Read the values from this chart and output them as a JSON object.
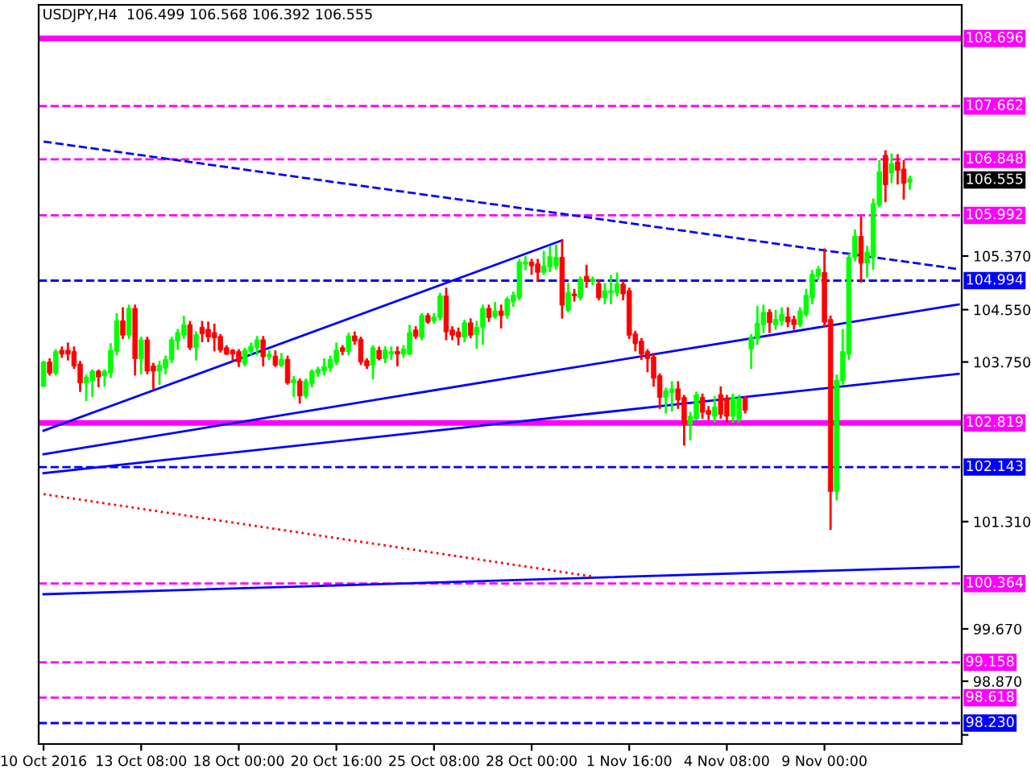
{
  "chart_data": {
    "type": "candlestick",
    "title": "USDJPY,H4  106.499 106.568 106.392 106.555",
    "categories": [
      "10 Oct 2016",
      null,
      null,
      null,
      null,
      null,
      null,
      null,
      null,
      null,
      null,
      null,
      null,
      null,
      null,
      null,
      "13 Oct 08:00",
      null,
      null,
      null,
      null,
      null,
      null,
      null,
      null,
      null,
      null,
      null,
      null,
      null,
      null,
      null,
      "18 Oct 00:00",
      null,
      null,
      null,
      null,
      null,
      null,
      null,
      null,
      null,
      null,
      null,
      null,
      null,
      null,
      null,
      "20 Oct 16:00",
      null,
      null,
      null,
      null,
      null,
      null,
      null,
      null,
      null,
      null,
      null,
      null,
      null,
      null,
      null,
      "25 Oct 08:00",
      null,
      null,
      null,
      null,
      null,
      null,
      null,
      null,
      null,
      null,
      null,
      null,
      null,
      null,
      null,
      "28 Oct 00:00",
      null,
      null,
      null,
      null,
      null,
      null,
      null,
      null,
      null,
      null,
      null,
      null,
      null,
      null,
      null,
      "1 Nov 16:00",
      null,
      null,
      null,
      null,
      null,
      null,
      null,
      null,
      null,
      null,
      null,
      null,
      null,
      null,
      null,
      "4 Nov 08:00",
      null,
      null,
      null,
      null,
      null,
      null,
      null,
      null,
      null,
      null,
      null,
      null,
      null,
      null,
      null,
      "9 Nov 00:00",
      null,
      null,
      null,
      null,
      null,
      null,
      null,
      null,
      null,
      null,
      null,
      null,
      null,
      null,
      null,
      null,
      null,
      null,
      null,
      null,
      null,
      null
    ],
    "ohlc": [
      [
        103.38,
        103.75,
        103.38,
        103.75
      ],
      [
        103.75,
        103.79,
        103.56,
        103.58
      ],
      [
        103.58,
        103.93,
        103.56,
        103.91
      ],
      [
        103.93,
        103.97,
        103.83,
        103.87
      ],
      [
        103.93,
        104.03,
        103.79,
        103.87
      ],
      [
        103.91,
        103.97,
        103.66,
        103.69
      ],
      [
        103.72,
        103.75,
        103.31,
        103.43
      ],
      [
        103.43,
        103.54,
        103.17,
        103.52
      ],
      [
        103.46,
        103.62,
        103.23,
        103.61
      ],
      [
        103.61,
        103.62,
        103.38,
        103.52
      ],
      [
        103.54,
        103.62,
        103.39,
        103.61
      ],
      [
        103.58,
        104.02,
        103.52,
        103.93
      ],
      [
        103.91,
        104.48,
        103.87,
        104.38
      ],
      [
        104.38,
        104.57,
        104.12,
        104.16
      ],
      [
        104.16,
        104.61,
        104.12,
        104.57
      ],
      [
        104.57,
        104.61,
        103.56,
        103.8
      ],
      [
        103.8,
        104.12,
        103.58,
        104.09
      ],
      [
        104.09,
        104.12,
        103.58,
        103.61
      ],
      [
        103.69,
        103.72,
        103.35,
        103.61
      ],
      [
        103.61,
        103.75,
        103.42,
        103.7
      ],
      [
        103.66,
        103.83,
        103.58,
        103.79
      ],
      [
        103.79,
        104.12,
        103.75,
        104.09
      ],
      [
        104.07,
        104.24,
        103.95,
        104.2
      ],
      [
        104.16,
        104.44,
        104.12,
        104.32
      ],
      [
        104.32,
        104.36,
        103.95,
        103.97
      ],
      [
        103.97,
        104.2,
        103.79,
        104.17
      ],
      [
        104.28,
        104.36,
        104.07,
        104.18
      ],
      [
        104.25,
        104.35,
        104.07,
        104.13
      ],
      [
        104.2,
        104.32,
        103.93,
        104.12
      ],
      [
        104.14,
        104.16,
        103.91,
        103.93
      ],
      [
        103.97,
        103.99,
        103.87,
        103.87
      ],
      [
        103.93,
        103.93,
        103.79,
        103.87
      ],
      [
        103.91,
        103.93,
        103.69,
        103.75
      ],
      [
        103.72,
        103.95,
        103.7,
        103.93
      ],
      [
        103.91,
        104.03,
        103.87,
        103.99
      ],
      [
        103.97,
        104.13,
        103.87,
        104.09
      ],
      [
        104.09,
        104.13,
        103.7,
        103.83
      ],
      [
        103.83,
        103.91,
        103.8,
        103.87
      ],
      [
        103.84,
        103.91,
        103.69,
        103.7
      ],
      [
        103.7,
        103.87,
        103.69,
        103.79
      ],
      [
        103.79,
        103.83,
        103.42,
        103.43
      ],
      [
        103.43,
        103.52,
        103.23,
        103.48
      ],
      [
        103.46,
        103.48,
        103.13,
        103.23
      ],
      [
        103.23,
        103.48,
        103.21,
        103.46
      ],
      [
        103.42,
        103.62,
        103.38,
        103.61
      ],
      [
        103.58,
        103.66,
        103.54,
        103.64
      ],
      [
        103.61,
        103.79,
        103.56,
        103.68
      ],
      [
        103.66,
        103.83,
        103.62,
        103.79
      ],
      [
        103.75,
        104.03,
        103.72,
        103.93
      ],
      [
        103.97,
        103.99,
        103.87,
        103.91
      ],
      [
        103.91,
        104.18,
        103.87,
        104.15
      ],
      [
        104.15,
        104.2,
        104.03,
        104.07
      ],
      [
        104.1,
        104.12,
        103.72,
        103.75
      ],
      [
        103.77,
        103.79,
        103.66,
        103.69
      ],
      [
        103.7,
        103.99,
        103.5,
        103.97
      ],
      [
        103.93,
        103.97,
        103.79,
        103.8
      ],
      [
        103.8,
        103.97,
        103.75,
        103.93
      ],
      [
        103.87,
        103.97,
        103.8,
        103.91
      ],
      [
        103.91,
        103.97,
        103.7,
        103.87
      ],
      [
        103.87,
        103.99,
        103.83,
        103.95
      ],
      [
        103.87,
        104.3,
        103.87,
        104.2
      ],
      [
        104.24,
        104.28,
        104.12,
        104.14
      ],
      [
        104.13,
        104.48,
        104.1,
        104.46
      ],
      [
        104.46,
        104.48,
        104.35,
        104.36
      ],
      [
        104.38,
        104.48,
        104.35,
        104.44
      ],
      [
        104.43,
        104.79,
        104.4,
        104.76
      ],
      [
        104.76,
        104.87,
        104.1,
        104.21
      ],
      [
        104.24,
        104.28,
        104.1,
        104.16
      ],
      [
        104.21,
        104.26,
        104.02,
        104.13
      ],
      [
        104.13,
        104.38,
        104.07,
        104.35
      ],
      [
        104.35,
        104.4,
        104.13,
        104.16
      ],
      [
        104.17,
        104.36,
        103.97,
        104.28
      ],
      [
        104.28,
        104.61,
        104.03,
        104.57
      ],
      [
        104.57,
        104.61,
        104.38,
        104.43
      ],
      [
        104.44,
        104.65,
        104.43,
        104.53
      ],
      [
        104.53,
        104.61,
        104.28,
        104.46
      ],
      [
        104.46,
        104.73,
        104.43,
        104.71
      ],
      [
        104.67,
        104.81,
        104.61,
        104.77
      ],
      [
        104.73,
        105.31,
        104.71,
        105.28
      ],
      [
        105.25,
        105.35,
        105.17,
        105.28
      ],
      [
        105.28,
        105.31,
        105.1,
        105.22
      ],
      [
        105.25,
        105.31,
        105.0,
        105.12
      ],
      [
        105.12,
        105.43,
        105.1,
        105.22
      ],
      [
        105.2,
        105.51,
        105.14,
        105.36
      ],
      [
        105.22,
        105.53,
        105.18,
        105.35
      ],
      [
        105.35,
        105.61,
        104.43,
        104.62
      ],
      [
        104.54,
        104.94,
        104.53,
        104.81
      ],
      [
        104.79,
        104.85,
        104.69,
        104.76
      ],
      [
        104.73,
        105.04,
        104.71,
        105.02
      ],
      [
        105.06,
        105.22,
        104.9,
        104.98
      ],
      [
        104.98,
        105.04,
        104.94,
        105.02
      ],
      [
        104.95,
        105.0,
        104.71,
        104.73
      ],
      [
        104.73,
        104.94,
        104.65,
        104.84
      ],
      [
        104.81,
        105.06,
        104.65,
        104.84
      ],
      [
        104.81,
        105.1,
        104.77,
        104.94
      ],
      [
        104.94,
        104.98,
        104.71,
        104.79
      ],
      [
        104.84,
        104.87,
        104.12,
        104.16
      ],
      [
        104.18,
        104.21,
        103.93,
        104.03
      ],
      [
        104.07,
        104.1,
        103.8,
        103.87
      ],
      [
        103.91,
        103.93,
        103.61,
        103.8
      ],
      [
        103.83,
        103.87,
        103.39,
        103.5
      ],
      [
        103.54,
        103.56,
        103.05,
        103.21
      ],
      [
        103.21,
        103.34,
        102.98,
        103.31
      ],
      [
        103.28,
        103.44,
        103.01,
        103.34
      ],
      [
        103.34,
        103.44,
        103.05,
        103.17
      ],
      [
        103.21,
        103.23,
        102.49,
        102.8
      ],
      [
        102.8,
        102.97,
        102.57,
        102.92
      ],
      [
        102.88,
        103.28,
        102.88,
        103.25
      ],
      [
        103.21,
        103.25,
        102.9,
        102.98
      ],
      [
        103.01,
        103.06,
        102.88,
        102.95
      ],
      [
        102.92,
        103.21,
        102.84,
        103.06
      ],
      [
        103.25,
        103.36,
        102.9,
        102.95
      ],
      [
        103.2,
        103.23,
        102.84,
        102.92
      ],
      [
        102.92,
        103.25,
        102.84,
        103.21
      ],
      [
        102.87,
        103.23,
        102.84,
        103.2
      ],
      [
        103.2,
        103.21,
        102.98,
        103.01
      ],
      [
        103.95,
        104.16,
        103.66,
        104.13
      ],
      [
        104.1,
        104.59,
        104.03,
        104.34
      ],
      [
        104.32,
        104.61,
        104.21,
        104.51
      ],
      [
        104.51,
        104.54,
        104.21,
        104.35
      ],
      [
        104.32,
        104.53,
        104.26,
        104.4
      ],
      [
        104.38,
        104.57,
        104.32,
        104.48
      ],
      [
        104.44,
        104.57,
        104.3,
        104.36
      ],
      [
        104.4,
        104.44,
        104.26,
        104.32
      ],
      [
        104.32,
        104.57,
        104.3,
        104.53
      ],
      [
        104.48,
        104.85,
        104.46,
        104.77
      ],
      [
        104.73,
        105.14,
        104.65,
        105.09
      ],
      [
        105.06,
        105.2,
        105.02,
        105.17
      ],
      [
        105.12,
        105.47,
        104.3,
        104.36
      ],
      [
        104.4,
        104.44,
        101.2,
        101.77
      ],
      [
        101.77,
        103.54,
        101.65,
        103.47
      ],
      [
        103.46,
        104.24,
        103.42,
        103.91
      ],
      [
        103.87,
        105.39,
        103.8,
        105.35
      ],
      [
        105.35,
        105.76,
        105.3,
        105.67
      ],
      [
        105.67,
        105.96,
        104.98,
        105.26
      ],
      [
        105.26,
        105.51,
        105.06,
        105.43
      ],
      [
        105.35,
        106.23,
        105.18,
        106.17
      ],
      [
        106.15,
        106.82,
        106.13,
        106.66
      ],
      [
        106.91,
        106.97,
        106.21,
        106.46
      ],
      [
        106.64,
        106.92,
        106.5,
        106.78
      ],
      [
        106.81,
        106.91,
        106.48,
        106.68
      ],
      [
        106.7,
        106.82,
        106.25,
        106.48
      ],
      [
        106.5,
        106.58,
        106.4,
        106.55
      ],
      null,
      null,
      null,
      null,
      null,
      null,
      null,
      null
    ],
    "colors": [
      "#00ff00",
      "#ff0000",
      "#00ff00",
      "#ff0000",
      "#ff0000",
      "#ff0000",
      "#ff0000",
      "#00ff00",
      "#00ff00",
      "#ff0000",
      "#00ff00",
      "#00ff00",
      "#00ff00",
      "#ff0000",
      "#00ff00",
      "#ff0000",
      "#00ff00",
      "#ff0000",
      "#ff0000",
      "#00ff00",
      "#00ff00",
      "#00ff00",
      "#00ff00",
      "#00ff00",
      "#ff0000",
      "#00ff00",
      "#ff0000",
      "#ff0000",
      "#ff0000",
      "#ff0000",
      "#ff0000",
      "#ff0000",
      "#ff0000",
      "#00ff00",
      "#00ff00",
      "#00ff00",
      "#ff0000",
      "#00ff00",
      "#ff0000",
      "#00ff00",
      "#ff0000",
      "#00ff00",
      "#ff0000",
      "#00ff00",
      "#00ff00",
      "#00ff00",
      "#00ff00",
      "#00ff00",
      "#00ff00",
      "#ff0000",
      "#00ff00",
      "#ff0000",
      "#ff0000",
      "#ff0000",
      "#00ff00",
      "#ff0000",
      "#00ff00",
      "#00ff00",
      "#ff0000",
      "#00ff00",
      "#00ff00",
      "#ff0000",
      "#00ff00",
      "#ff0000",
      "#00ff00",
      "#00ff00",
      "#ff0000",
      "#ff0000",
      "#ff0000",
      "#00ff00",
      "#ff0000",
      "#00ff00",
      "#00ff00",
      "#ff0000",
      "#00ff00",
      "#ff0000",
      "#00ff00",
      "#00ff00",
      "#00ff00",
      "#00ff00",
      "#ff0000",
      "#ff0000",
      "#00ff00",
      "#00ff00",
      "#00ff00",
      "#ff0000",
      "#00ff00",
      "#ff0000",
      "#00ff00",
      "#ff0000",
      "#00ff00",
      "#ff0000",
      "#00ff00",
      "#00ff00",
      "#00ff00",
      "#ff0000",
      "#ff0000",
      "#ff0000",
      "#ff0000",
      "#ff0000",
      "#ff0000",
      "#ff0000",
      "#00ff00",
      "#00ff00",
      "#ff0000",
      "#ff0000",
      "#00ff00",
      "#00ff00",
      "#ff0000",
      "#ff0000",
      "#00ff00",
      "#ff0000",
      "#ff0000",
      "#00ff00",
      "#00ff00",
      "#ff0000",
      "#00ff00",
      "#00ff00",
      "#00ff00",
      "#ff0000",
      "#00ff00",
      "#00ff00",
      "#ff0000",
      "#ff0000",
      "#00ff00",
      "#00ff00",
      "#00ff00",
      "#00ff00",
      "#ff0000",
      "#ff0000",
      "#00ff00",
      "#00ff00",
      "#00ff00",
      "#00ff00",
      "#ff0000",
      "#00ff00",
      "#00ff00",
      "#00ff00",
      "#ff0000",
      "#00ff00",
      "#ff0000",
      "#ff0000",
      "#00ff00",
      null,
      null,
      null,
      null,
      null,
      null,
      null,
      null
    ],
    "series": [
      {
        "type": "line",
        "color": "#0000ff",
        "line_style": "solid",
        "values": [
          102.7,
          null,
          null,
          null,
          null,
          null,
          null,
          null,
          null,
          null,
          null,
          null,
          null,
          null,
          null,
          null,
          null,
          null,
          null,
          null,
          null,
          null,
          null,
          null,
          null,
          null,
          null,
          null,
          null,
          null,
          null,
          null,
          null,
          null,
          null,
          null,
          null,
          null,
          null,
          null,
          null,
          null,
          null,
          null,
          null,
          null,
          null,
          null,
          null,
          null,
          null,
          null,
          null,
          null,
          null,
          null,
          null,
          null,
          null,
          null,
          null,
          null,
          null,
          null,
          null,
          null,
          null,
          null,
          null,
          null,
          null,
          null,
          null,
          null,
          null,
          null,
          null,
          null,
          null,
          null,
          null,
          null,
          null,
          null,
          null,
          105.61,
          null,
          null,
          null,
          null,
          null,
          null,
          null,
          null,
          null,
          null,
          null,
          null,
          null,
          null,
          null,
          null,
          null,
          null,
          null,
          null,
          null,
          null,
          null,
          null,
          null,
          null,
          null,
          null,
          null,
          null,
          null,
          null,
          null,
          null,
          null,
          null,
          null,
          null,
          null,
          null,
          null,
          null,
          null,
          null,
          null,
          null,
          null,
          null,
          null,
          null,
          null,
          null,
          null,
          null,
          null,
          null,
          null,
          null,
          null,
          null,
          null,
          null,
          null,
          null,
          null
        ]
      },
      {
        "type": "line",
        "color": "#0000ff",
        "line_style": "solid",
        "values": [
          102.34,
          null,
          null,
          null,
          null,
          null,
          null,
          null,
          null,
          null,
          null,
          null,
          null,
          null,
          null,
          null,
          null,
          null,
          null,
          null,
          null,
          null,
          null,
          null,
          null,
          null,
          null,
          null,
          null,
          null,
          null,
          null,
          null,
          null,
          null,
          null,
          null,
          null,
          null,
          null,
          null,
          null,
          null,
          null,
          null,
          null,
          null,
          null,
          null,
          null,
          null,
          null,
          null,
          null,
          null,
          null,
          null,
          null,
          null,
          null,
          null,
          null,
          null,
          null,
          null,
          null,
          null,
          null,
          null,
          null,
          null,
          null,
          null,
          null,
          null,
          null,
          null,
          null,
          null,
          null,
          null,
          null,
          null,
          null,
          null,
          null,
          null,
          null,
          null,
          null,
          null,
          null,
          null,
          null,
          null,
          null,
          null,
          null,
          null,
          null,
          null,
          null,
          null,
          null,
          null,
          null,
          null,
          null,
          null,
          null,
          null,
          null,
          null,
          null,
          null,
          null,
          null,
          null,
          null,
          null,
          null,
          null,
          null,
          null,
          null,
          null,
          null,
          null,
          null,
          null,
          null,
          null,
          null,
          null,
          null,
          null,
          null,
          null,
          null,
          null,
          null,
          null,
          null,
          null,
          null,
          null,
          null,
          null,
          null,
          null,
          104.63
        ]
      },
      {
        "type": "line",
        "color": "#0000ff",
        "line_style": "solid",
        "values": [
          102.05,
          null,
          null,
          null,
          null,
          null,
          null,
          null,
          null,
          null,
          null,
          null,
          null,
          null,
          null,
          null,
          null,
          null,
          null,
          null,
          null,
          null,
          null,
          null,
          null,
          null,
          null,
          null,
          null,
          null,
          null,
          null,
          null,
          null,
          null,
          null,
          null,
          null,
          null,
          null,
          null,
          null,
          null,
          null,
          null,
          null,
          null,
          null,
          null,
          null,
          null,
          null,
          null,
          null,
          null,
          null,
          null,
          null,
          null,
          null,
          null,
          null,
          null,
          null,
          null,
          null,
          null,
          null,
          null,
          null,
          null,
          null,
          null,
          null,
          null,
          null,
          null,
          null,
          null,
          null,
          null,
          null,
          null,
          null,
          null,
          null,
          null,
          null,
          null,
          null,
          null,
          null,
          null,
          null,
          null,
          null,
          null,
          null,
          null,
          null,
          null,
          null,
          null,
          null,
          null,
          null,
          null,
          null,
          null,
          null,
          null,
          null,
          null,
          null,
          null,
          null,
          null,
          null,
          null,
          null,
          null,
          null,
          null,
          null,
          null,
          null,
          null,
          null,
          null,
          null,
          null,
          null,
          null,
          null,
          null,
          null,
          null,
          null,
          null,
          null,
          null,
          null,
          null,
          null,
          null,
          null,
          null,
          null,
          null,
          null,
          103.57
        ]
      },
      {
        "type": "line",
        "color": "#0000ff",
        "line_style": "solid",
        "values": [
          100.2,
          null,
          null,
          null,
          null,
          null,
          null,
          null,
          null,
          null,
          null,
          null,
          null,
          null,
          null,
          null,
          null,
          null,
          null,
          null,
          null,
          null,
          null,
          null,
          null,
          null,
          null,
          null,
          null,
          null,
          null,
          null,
          null,
          null,
          null,
          null,
          null,
          null,
          null,
          null,
          null,
          null,
          null,
          null,
          null,
          null,
          null,
          null,
          null,
          null,
          null,
          null,
          null,
          null,
          null,
          null,
          null,
          null,
          null,
          null,
          null,
          null,
          null,
          null,
          null,
          null,
          null,
          null,
          null,
          null,
          null,
          null,
          null,
          null,
          null,
          null,
          null,
          null,
          null,
          null,
          null,
          null,
          null,
          null,
          null,
          null,
          null,
          null,
          null,
          null,
          null,
          null,
          null,
          null,
          null,
          null,
          null,
          null,
          null,
          null,
          null,
          null,
          null,
          null,
          null,
          null,
          null,
          null,
          null,
          null,
          null,
          null,
          null,
          null,
          null,
          null,
          null,
          null,
          null,
          null,
          null,
          null,
          null,
          null,
          null,
          null,
          null,
          null,
          null,
          null,
          null,
          null,
          null,
          null,
          null,
          null,
          null,
          null,
          null,
          null,
          null,
          null,
          null,
          null,
          null,
          null,
          null,
          null,
          null,
          null,
          100.62
        ]
      },
      {
        "type": "line",
        "color": "#0000ff",
        "line_style": "dashed",
        "values": [
          107.12,
          null,
          null,
          null,
          null,
          null,
          null,
          null,
          null,
          null,
          null,
          null,
          null,
          null,
          null,
          null,
          null,
          null,
          null,
          null,
          null,
          null,
          null,
          null,
          null,
          null,
          null,
          null,
          null,
          null,
          null,
          null,
          null,
          null,
          null,
          null,
          null,
          null,
          null,
          null,
          null,
          null,
          null,
          null,
          null,
          null,
          null,
          null,
          null,
          null,
          null,
          null,
          null,
          null,
          null,
          null,
          null,
          null,
          null,
          null,
          null,
          null,
          null,
          null,
          null,
          null,
          null,
          null,
          null,
          null,
          null,
          null,
          null,
          null,
          null,
          null,
          null,
          null,
          null,
          null,
          null,
          null,
          null,
          null,
          null,
          null,
          null,
          null,
          null,
          null,
          null,
          null,
          null,
          null,
          null,
          null,
          null,
          null,
          null,
          null,
          null,
          null,
          null,
          null,
          null,
          null,
          null,
          null,
          null,
          null,
          null,
          null,
          null,
          null,
          null,
          null,
          null,
          null,
          null,
          null,
          null,
          null,
          null,
          null,
          null,
          null,
          null,
          null,
          null,
          null,
          null,
          null,
          null,
          null,
          null,
          null,
          null,
          null,
          null,
          null,
          null,
          null,
          null,
          null,
          null,
          null,
          null,
          null,
          null,
          null,
          105.17
        ]
      },
      {
        "type": "line",
        "color": "#ff0000",
        "line_style": "dotted",
        "values": [
          101.73,
          null,
          null,
          null,
          null,
          null,
          null,
          null,
          null,
          null,
          null,
          null,
          null,
          null,
          null,
          null,
          null,
          null,
          null,
          null,
          null,
          null,
          null,
          null,
          null,
          null,
          null,
          null,
          null,
          null,
          null,
          null,
          null,
          null,
          null,
          null,
          null,
          null,
          null,
          null,
          null,
          null,
          null,
          null,
          null,
          null,
          null,
          null,
          null,
          null,
          null,
          null,
          null,
          null,
          null,
          null,
          null,
          null,
          null,
          null,
          null,
          null,
          null,
          null,
          null,
          null,
          null,
          null,
          null,
          null,
          null,
          null,
          null,
          null,
          null,
          null,
          null,
          null,
          null,
          null,
          null,
          null,
          null,
          null,
          null,
          null,
          null,
          null,
          null,
          null,
          100.47,
          null,
          null,
          null,
          null,
          null,
          null,
          null,
          null,
          null,
          null,
          null,
          null,
          null,
          null,
          null,
          null,
          null,
          null,
          null,
          null,
          null,
          null,
          null,
          null,
          null,
          null,
          null,
          null,
          null,
          null,
          null,
          null,
          null,
          null,
          null,
          null,
          null,
          null,
          null,
          null,
          null,
          null,
          null,
          null,
          null,
          null,
          null,
          null,
          null,
          null,
          null,
          null,
          null,
          null,
          null,
          null,
          null,
          null,
          null,
          null
        ]
      }
    ],
    "ylim": [
      97.91,
      109.21
    ],
    "yticks": [
      {
        "value": 98.05,
        "label": null
      },
      {
        "value": 98.87,
        "label": "98.870"
      },
      {
        "value": 99.67,
        "label": "99.670"
      },
      {
        "value": 101.31,
        "label": "101.310"
      },
      {
        "value": 103.75,
        "label": "103.750"
      },
      {
        "value": 104.55,
        "label": "104.550"
      },
      {
        "value": 105.37,
        "label": "105.370"
      }
    ],
    "ref_lines": [
      {
        "axis": "y",
        "value": 108.696,
        "label": "108.696",
        "color": "#ff00ff",
        "line_style": "solid"
      },
      {
        "axis": "y",
        "value": 107.662,
        "label": "107.662",
        "color": "#ff00ff",
        "line_style": "dashed"
      },
      {
        "axis": "y",
        "value": 106.848,
        "label": "106.848",
        "color": "#ff00ff",
        "line_style": "dashed"
      },
      {
        "axis": "y",
        "value": 105.992,
        "label": "105.992",
        "color": "#ff00ff",
        "line_style": "dashed"
      },
      {
        "axis": "y",
        "value": 104.994,
        "label": "104.994",
        "color": "#0000ff",
        "line_style": "dashed"
      },
      {
        "axis": "y",
        "value": 102.819,
        "label": "102.819",
        "color": "#ff00ff",
        "line_style": "solid"
      },
      {
        "axis": "y",
        "value": 102.143,
        "label": "102.143",
        "color": "#0000ff",
        "line_style": "dashed"
      },
      {
        "axis": "y",
        "value": 100.364,
        "label": "100.364",
        "color": "#ff00ff",
        "line_style": "dashed"
      },
      {
        "axis": "y",
        "value": 99.158,
        "label": "99.158",
        "color": "#ff00ff",
        "line_style": "dashed"
      },
      {
        "axis": "y",
        "value": 98.618,
        "label": "98.618",
        "color": "#ff00ff",
        "line_style": "dashed"
      },
      {
        "axis": "y",
        "value": 98.23,
        "label": "98.230",
        "color": "#0000ff",
        "line_style": "dashed"
      }
    ],
    "annotations": [
      "106.555"
    ],
    "grid": false,
    "marker": "none"
  }
}
